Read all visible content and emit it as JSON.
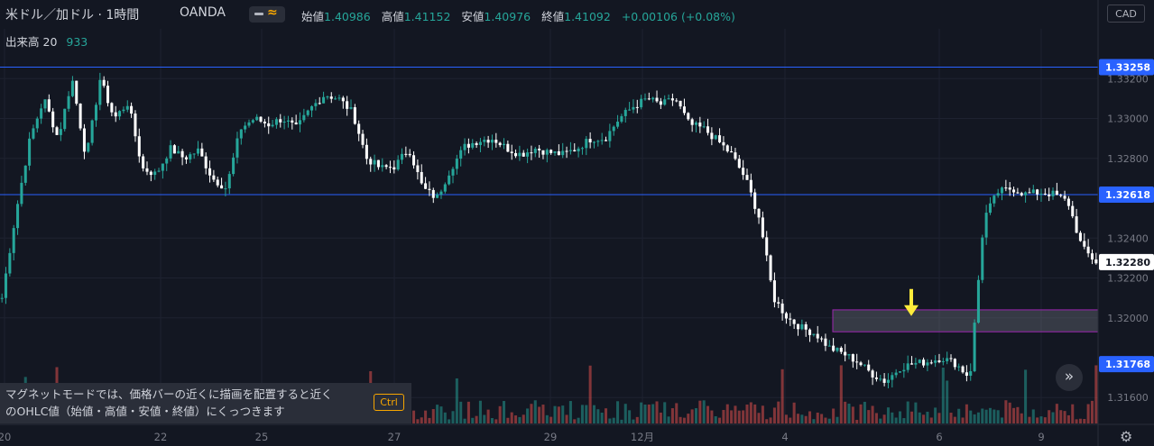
{
  "header": {
    "title": "米ドル／加ドル · 1時間",
    "broker": "OANDA",
    "ohlc": [
      {
        "label": "始値",
        "value": "1.40986"
      },
      {
        "label": "高値",
        "value": "1.41152"
      },
      {
        "label": "安値",
        "value": "1.40976"
      },
      {
        "label": "終値",
        "value": "1.41092"
      }
    ],
    "change": "+0.00106 (+0.08%)",
    "volume_label": "出来高",
    "volume_period": "20",
    "volume_value": "933",
    "currency": "CAD"
  },
  "tooltip": {
    "line1": "マグネットモードでは、価格バーの近くに描画を配置すると近く",
    "line2": "のOHLC値（始値・高値・安値・終値）にくっつきます",
    "key": "Ctrl"
  },
  "buttons": {
    "scroll": "»",
    "settings": "⚙"
  },
  "colors": {
    "background": "#131722",
    "up": "#26a69a",
    "down": "#ffffff",
    "volume_up": "#26a69a",
    "volume_down": "#ef5350",
    "hline": "#2962ff",
    "zone_border": "#9c27b0",
    "arrow": "#ffeb3b"
  },
  "chart_data": {
    "type": "candlestick",
    "symbol": "USDCAD",
    "ylim": [
      1.3147,
      1.3345
    ],
    "y_ticks": [
      "1.33200",
      "1.33000",
      "1.32800",
      "1.32400",
      "1.32200",
      "1.32000",
      "1.31600"
    ],
    "x_ticks": [
      "20",
      "22",
      "25",
      "27",
      "29",
      "12月",
      "4",
      "6",
      "9"
    ],
    "price_badges": [
      {
        "value": "1.33258",
        "style": "blue"
      },
      {
        "value": "1.32618",
        "style": "blue"
      },
      {
        "value": "1.32280",
        "style": "white"
      },
      {
        "value": "1.31768",
        "style": "blue"
      }
    ],
    "horizontal_lines": [
      1.33258,
      1.32618
    ],
    "zone": {
      "top": 1.3204,
      "bottom": 1.3193,
      "start_label": "4"
    },
    "arrow_marker": {
      "near": "5",
      "price": 1.32
    },
    "price_path": [
      [
        1.321,
        1.3253,
        1.329,
        1.331,
        1.329,
        1.332
      ],
      [
        1.328,
        1.332,
        1.33,
        1.3308,
        1.3275,
        1.3272
      ],
      [
        1.3285,
        1.328,
        1.3284,
        1.327,
        1.3265
      ],
      [
        1.3295,
        1.33,
        1.3297,
        1.33,
        1.3295
      ],
      [
        1.3305,
        1.3312,
        1.331,
        1.3303
      ],
      [
        1.328,
        1.3275,
        1.3276,
        1.3285
      ],
      [
        1.3265,
        1.326,
        1.3275,
        1.3286,
        1.3289
      ],
      [
        1.329,
        1.3285,
        1.3282,
        1.3285
      ],
      [
        1.3283,
        1.3282,
        1.3285,
        1.329
      ],
      [
        1.329,
        1.33,
        1.3306,
        1.331,
        1.3307
      ],
      [
        1.331,
        1.3297,
        1.3295,
        1.3289,
        1.3282
      ],
      [
        1.327,
        1.325,
        1.321,
        1.32,
        1.3195
      ],
      [
        1.3192,
        1.3185,
        1.3182,
        1.3178,
        1.3172,
        1.3168
      ],
      [
        1.3175,
        1.3177,
        1.3178,
        1.318,
        1.3177
      ],
      [
        1.317,
        1.325,
        1.3263,
        1.3265,
        1.3262,
        1.3263
      ],
      [
        1.3262,
        1.3258,
        1.3235,
        1.3228
      ]
    ]
  }
}
